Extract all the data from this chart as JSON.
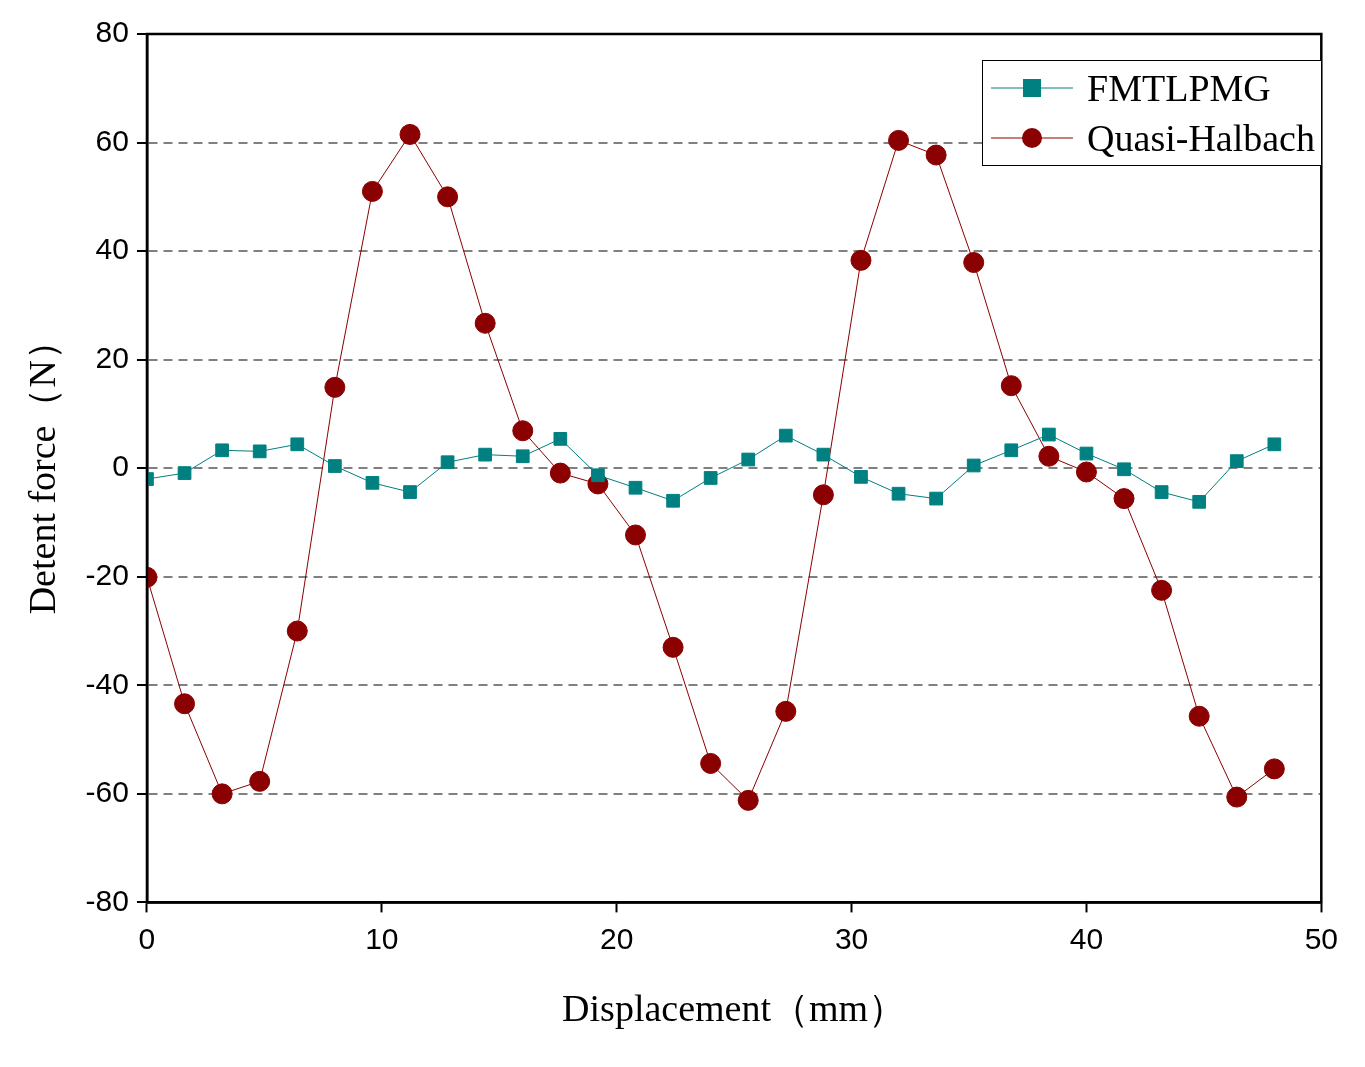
{
  "chart_data": {
    "type": "line",
    "xlabel": "Displacement（mm）",
    "ylabel": "Detent force（N）",
    "x": [
      0,
      1.6,
      3.2,
      4.8,
      6.4,
      8,
      9.6,
      11.2,
      12.8,
      14.4,
      16,
      17.6,
      19.2,
      20.8,
      22.4,
      24,
      25.6,
      27.2,
      28.8,
      30.4,
      32,
      33.6,
      35.2,
      36.8,
      38.4,
      40,
      41.6,
      43.2,
      44.8,
      46.4,
      48
    ],
    "series": [
      {
        "name": "FMTLPMG",
        "color": "#008080",
        "marker": "square",
        "values": [
          -2,
          -0.9,
          3.3,
          3.1,
          4.4,
          0.4,
          -2.7,
          -4.4,
          1.1,
          2.5,
          2.2,
          5.4,
          -1.3,
          -3.6,
          -6,
          -1.8,
          1.6,
          6,
          2.5,
          -1.6,
          -4.7,
          -5.6,
          0.5,
          3.3,
          6.2,
          2.7,
          -0.2,
          -4.4,
          -6.2,
          1.3,
          4.4
        ]
      },
      {
        "name": "Quasi-Halbach",
        "color": "#8b0000",
        "marker": "circle",
        "values": [
          -20.1,
          -43.4,
          -60,
          -57.7,
          -30,
          14.9,
          51,
          61.5,
          50,
          26.7,
          6.9,
          -0.9,
          -2.9,
          -12.3,
          -33,
          -54.4,
          -61.2,
          -44.8,
          -4.9,
          38.3,
          60.4,
          57.7,
          37.9,
          15.2,
          2.2,
          -0.7,
          -5.6,
          -22.5,
          -45.7,
          -60.6,
          -55.4
        ]
      }
    ],
    "xlim": [
      0,
      50
    ],
    "xticks": [
      0,
      10,
      20,
      30,
      40,
      50
    ],
    "ylim": [
      -80,
      80
    ],
    "yticks": [
      -80,
      -60,
      -40,
      -20,
      0,
      20,
      40,
      60,
      80
    ],
    "grid": "y",
    "legend": "top right",
    "line_style": "solid"
  }
}
